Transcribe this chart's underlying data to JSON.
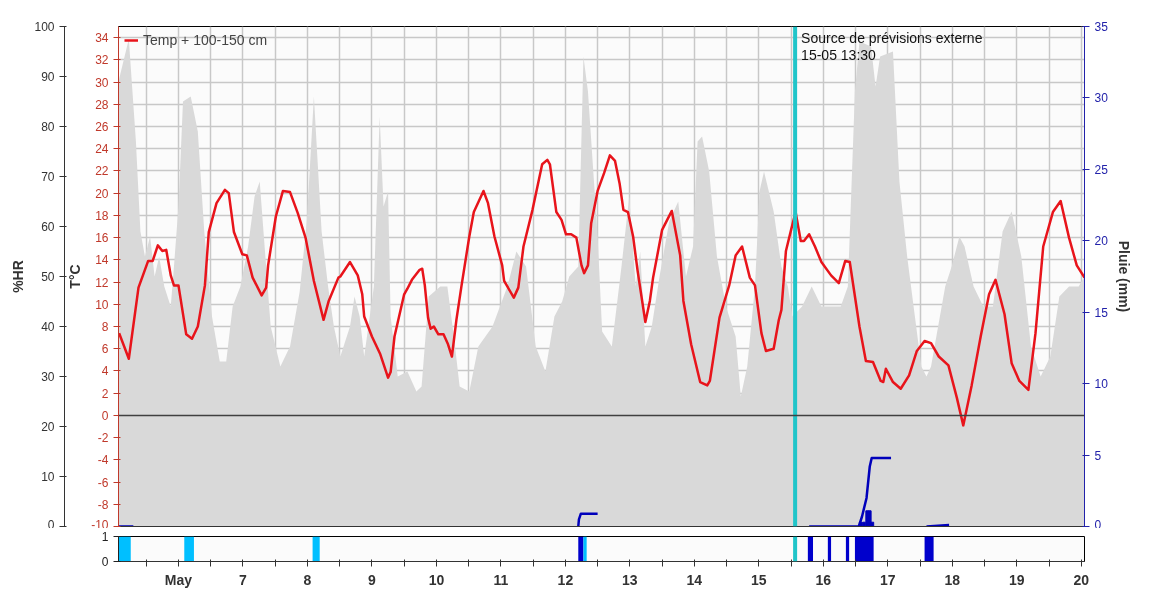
{
  "chart_data": [
    {
      "type": "line",
      "ylabel": "T°C",
      "y2label": "%HR",
      "y3label": "Pluie (mm)",
      "xlim": [
        5.07,
        20.05
      ],
      "xticks": [
        {
          "value": 5.5,
          "label": null
        },
        {
          "value": 6,
          "label": null
        },
        {
          "value": 6.5,
          "label": null
        },
        {
          "value": 7,
          "label": null
        },
        {
          "value": 7.5,
          "label": null
        },
        {
          "value": 8,
          "label": null
        },
        {
          "value": 8.5,
          "label": null
        },
        {
          "value": 9,
          "label": null
        },
        {
          "value": 9.5,
          "label": null
        },
        {
          "value": 10,
          "label": null
        },
        {
          "value": 10.5,
          "label": null
        },
        {
          "value": 11,
          "label": null
        },
        {
          "value": 11.5,
          "label": null
        },
        {
          "value": 12,
          "label": null
        },
        {
          "value": 12.5,
          "label": null
        },
        {
          "value": 13,
          "label": null
        },
        {
          "value": 13.5,
          "label": null
        },
        {
          "value": 14,
          "label": null
        },
        {
          "value": 14.5,
          "label": null
        },
        {
          "value": 15,
          "label": null
        },
        {
          "value": 15.5,
          "label": null
        },
        {
          "value": 16,
          "label": null
        },
        {
          "value": 16.5,
          "label": null
        },
        {
          "value": 17,
          "label": null
        },
        {
          "value": 17.5,
          "label": null
        },
        {
          "value": 18,
          "label": null
        },
        {
          "value": 18.5,
          "label": null
        },
        {
          "value": 19,
          "label": null
        },
        {
          "value": 19.5,
          "label": null
        },
        {
          "value": 20,
          "label": null
        }
      ],
      "ylim": [
        -10,
        35
      ],
      "yticks": [
        -10,
        -8,
        -6,
        -4,
        -2,
        0,
        2,
        4,
        6,
        8,
        10,
        12,
        14,
        16,
        18,
        20,
        22,
        24,
        26,
        28,
        30,
        32,
        34
      ],
      "y2lim": [
        0,
        100
      ],
      "y2ticks": [
        0,
        10,
        20,
        30,
        40,
        50,
        60,
        70,
        80,
        90,
        100
      ],
      "y3lim": [
        0,
        35
      ],
      "y3ticks": [
        0,
        5,
        10,
        15,
        20,
        25,
        30,
        35
      ],
      "grid": true,
      "legend": "top left",
      "tick_labels": "y",
      "annotations": [
        "Source de prévisions externe\n15-05 13:30"
      ],
      "ref_lines": [
        {
          "axis": "x",
          "value": 15.5625,
          "color": "#20c5c9"
        },
        {
          "axis": "y",
          "value": 0,
          "color": "#404040"
        }
      ],
      "series": [
        {
          "type": "area",
          "axis": "y2",
          "color": "#d9d9d9",
          "x": [
            5.07,
            5.23,
            5.34,
            5.41,
            5.48,
            5.56,
            5.63,
            5.7,
            5.78,
            5.88,
            5.93,
            6.0,
            6.07,
            6.19,
            6.3,
            6.4,
            6.52,
            6.64,
            6.74,
            6.84,
            6.96,
            7.08,
            7.18,
            7.26,
            7.33,
            7.43,
            7.58,
            7.73,
            7.88,
            7.99,
            8.1,
            8.22,
            8.32,
            8.41,
            8.51,
            8.66,
            8.73,
            8.81,
            8.88,
            9.03,
            9.12,
            9.18,
            9.25,
            9.29,
            9.4,
            9.55,
            9.69,
            9.77,
            9.88,
            10.06,
            10.17,
            10.28,
            10.36,
            10.51,
            10.65,
            10.87,
            11.1,
            11.24,
            11.39,
            11.54,
            11.69,
            11.83,
            11.95,
            12.06,
            12.2,
            12.28,
            12.35,
            12.5,
            12.57,
            12.72,
            12.87,
            12.99,
            13.09,
            13.16,
            13.24,
            13.34,
            13.46,
            13.61,
            13.75,
            13.87,
            13.98,
            14.05,
            14.12,
            14.23,
            14.35,
            14.49,
            14.64,
            14.72,
            14.82,
            14.94,
            15.01,
            15.08,
            15.23,
            15.35,
            15.45,
            15.52,
            15.67,
            15.82,
            15.97,
            16.12,
            16.27,
            16.38,
            16.49,
            16.56,
            16.74,
            16.81,
            16.88,
            17.08,
            17.18,
            17.3,
            17.52,
            17.6,
            17.67,
            17.89,
            17.99,
            18.11,
            18.19,
            18.33,
            18.48,
            18.63,
            18.78,
            18.92,
            19.07,
            19.22,
            19.37,
            19.52,
            19.66,
            19.81,
            19.96,
            20.05
          ],
          "values": [
            89,
            97.5,
            77,
            59,
            54,
            58,
            50,
            54,
            48,
            44,
            52,
            64,
            85,
            86,
            79,
            59,
            42,
            33,
            33,
            44,
            48,
            56,
            66,
            69,
            57,
            40,
            32,
            36,
            47,
            61,
            86,
            59,
            48,
            40,
            34,
            40,
            46,
            42,
            34,
            48,
            82,
            64,
            67,
            42,
            30,
            31,
            27,
            28,
            46,
            48,
            48,
            37,
            28,
            27,
            36,
            40,
            48,
            55,
            52,
            36,
            31,
            42,
            45,
            50,
            52,
            94,
            87,
            58,
            39,
            36,
            52,
            66,
            48,
            55,
            36,
            40,
            50,
            61,
            65,
            50,
            56,
            77,
            78,
            71,
            54,
            44,
            38,
            26,
            32,
            48,
            67,
            71,
            63,
            52,
            48,
            42,
            44,
            48,
            44,
            44,
            44,
            48,
            87,
            97,
            96,
            88,
            94,
            95,
            69,
            54,
            32,
            30,
            32,
            48,
            52,
            58,
            56,
            48,
            44,
            44,
            59,
            63,
            54,
            36,
            30,
            34,
            46,
            48,
            48,
            50
          ]
        },
        {
          "name": "Temp + 100-150 cm",
          "color": "#e8141b",
          "x": [
            5.08,
            5.23,
            5.38,
            5.53,
            5.6,
            5.68,
            5.75,
            5.81,
            5.88,
            5.93,
            6.0,
            6.12,
            6.21,
            6.3,
            6.41,
            6.47,
            6.59,
            6.72,
            6.78,
            6.86,
            6.99,
            7.06,
            7.15,
            7.29,
            7.36,
            7.39,
            7.51,
            7.62,
            7.73,
            7.85,
            7.97,
            8.07,
            8.1,
            8.25,
            8.33,
            8.48,
            8.51,
            8.66,
            8.78,
            8.85,
            8.88,
            9.0,
            9.13,
            9.25,
            9.29,
            9.35,
            9.5,
            9.55,
            9.62,
            9.74,
            9.78,
            9.82,
            9.87,
            9.91,
            9.96,
            10.03,
            10.11,
            10.18,
            10.24,
            10.31,
            10.39,
            10.51,
            10.58,
            10.73,
            10.8,
            10.9,
            11.02,
            11.05,
            11.2,
            11.27,
            11.35,
            11.49,
            11.64,
            11.72,
            11.76,
            11.86,
            11.94,
            12.01,
            12.09,
            12.17,
            12.25,
            12.29,
            12.35,
            12.4,
            12.5,
            12.6,
            12.69,
            12.77,
            12.84,
            12.9,
            12.97,
            13.05,
            13.12,
            13.24,
            13.31,
            13.36,
            13.5,
            13.65,
            13.78,
            13.83,
            13.95,
            14.09,
            14.2,
            14.24,
            14.39,
            14.54,
            14.64,
            14.74,
            14.86,
            14.94,
            15.04,
            15.11,
            15.23,
            15.31,
            15.35,
            15.42,
            15.5,
            15.57,
            15.65,
            15.7,
            15.78,
            15.87,
            15.97,
            16.12,
            16.24,
            16.34,
            16.41,
            16.56,
            16.66,
            16.77,
            16.89,
            16.93,
            16.97,
            17.08,
            17.2,
            17.33,
            17.45,
            17.57,
            17.67,
            17.79,
            17.94,
            18.07,
            18.17,
            18.3,
            18.44,
            18.57,
            18.67,
            18.81,
            18.92,
            19.04,
            19.18,
            19.29,
            19.41,
            19.56,
            19.68,
            19.81,
            19.93,
            20.05
          ],
          "values": [
            7.4,
            5.1,
            11.5,
            13.9,
            13.9,
            15.3,
            14.8,
            14.9,
            12.6,
            11.7,
            11.7,
            7.3,
            6.9,
            8.0,
            11.7,
            16.5,
            19.1,
            20.3,
            20.0,
            16.5,
            14.5,
            14.4,
            12.4,
            10.8,
            11.5,
            13.5,
            17.9,
            20.2,
            20.1,
            18.2,
            16.0,
            13.0,
            12.1,
            8.6,
            10.3,
            12.4,
            12.5,
            13.8,
            12.6,
            10.9,
            8.9,
            7.1,
            5.5,
            3.4,
            3.9,
            7.1,
            10.9,
            11.4,
            12.2,
            13.1,
            13.2,
            11.7,
            8.8,
            7.8,
            8.0,
            7.3,
            7.3,
            6.4,
            5.3,
            8.6,
            11.7,
            16.1,
            18.3,
            20.2,
            19.1,
            16.1,
            13.5,
            12.1,
            10.6,
            11.5,
            15.2,
            18.5,
            22.6,
            23.0,
            22.6,
            18.3,
            17.6,
            16.3,
            16.3,
            16.0,
            13.5,
            12.8,
            13.5,
            17.3,
            20.2,
            21.8,
            23.4,
            22.9,
            20.9,
            18.5,
            18.3,
            16.1,
            13.0,
            8.4,
            10.3,
            12.4,
            16.7,
            18.4,
            14.4,
            10.3,
            6.4,
            3.0,
            2.7,
            3.1,
            8.8,
            11.7,
            14.4,
            15.2,
            12.4,
            11.7,
            7.4,
            5.8,
            6.0,
            8.6,
            9.5,
            14.8,
            16.7,
            18.3,
            15.7,
            15.7,
            16.3,
            15.2,
            13.8,
            12.6,
            11.9,
            13.9,
            13.8,
            8.0,
            4.9,
            4.8,
            3.1,
            3.0,
            4.2,
            3.0,
            2.4,
            3.6,
            5.8,
            6.7,
            6.5,
            5.3,
            4.5,
            1.6,
            -0.9,
            2.7,
            7.1,
            10.9,
            12.2,
            9.1,
            4.7,
            3.1,
            2.3,
            7.4,
            15.2,
            18.3,
            19.3,
            16.0,
            13.5,
            12.4
          ]
        },
        {
          "type": "line",
          "axis": "y3",
          "color": "#0000bb",
          "x": [
            5.07,
            5.3,
            5.31,
            12.2,
            12.21,
            12.24,
            12.5,
            12.51,
            15.78,
            16.55,
            16.6,
            16.67,
            16.72,
            16.75,
            17.05,
            17.06,
            17.6,
            17.95
          ],
          "values": [
            0,
            0,
            null,
            0,
            0.5,
            0.9,
            0.9,
            null,
            0,
            0,
            0.7,
            2,
            4.2,
            4.8,
            4.8,
            null,
            0,
            0.1
          ]
        },
        {
          "type": "bar",
          "axis": "y3",
          "color": "#0000bb",
          "x": [
            16.58,
            16.63,
            16.68,
            16.72,
            16.76
          ],
          "values": [
            0.3,
            0.3,
            1.1,
            1.1,
            0.3
          ]
        }
      ]
    },
    {
      "type": "area",
      "xlim": [
        5.07,
        20.05
      ],
      "xticks": [
        {
          "value": 5.5,
          "label": null
        },
        {
          "value": 6,
          "label": "May"
        },
        {
          "value": 6.5,
          "label": null
        },
        {
          "value": 7,
          "label": "7"
        },
        {
          "value": 7.5,
          "label": null
        },
        {
          "value": 8,
          "label": "8"
        },
        {
          "value": 8.5,
          "label": null
        },
        {
          "value": 9,
          "label": "9"
        },
        {
          "value": 9.5,
          "label": null
        },
        {
          "value": 10,
          "label": "10"
        },
        {
          "value": 10.5,
          "label": null
        },
        {
          "value": 11,
          "label": "11"
        },
        {
          "value": 11.5,
          "label": null
        },
        {
          "value": 12,
          "label": "12"
        },
        {
          "value": 12.5,
          "label": null
        },
        {
          "value": 13,
          "label": "13"
        },
        {
          "value": 13.5,
          "label": null
        },
        {
          "value": 14,
          "label": "14"
        },
        {
          "value": 14.5,
          "label": null
        },
        {
          "value": 15,
          "label": "15"
        },
        {
          "value": 15.5,
          "label": null
        },
        {
          "value": 16,
          "label": "16"
        },
        {
          "value": 16.5,
          "label": null
        },
        {
          "value": 17,
          "label": "17"
        },
        {
          "value": 17.5,
          "label": null
        },
        {
          "value": 18,
          "label": "18"
        },
        {
          "value": 18.5,
          "label": null
        },
        {
          "value": 19,
          "label": "19"
        },
        {
          "value": 19.5,
          "label": null
        },
        {
          "value": 20,
          "label": "20"
        }
      ],
      "ylim": [
        0,
        1
      ],
      "yticks": [
        0,
        1
      ],
      "ref_lines": [
        {
          "axis": "x",
          "value": 15.5625,
          "color": "#20c5c9"
        }
      ],
      "series": [
        {
          "color": "#00bfff",
          "x": [
            5.07,
            5.26
          ],
          "values": [
            1,
            1
          ]
        },
        {
          "color": "#00bfff",
          "x": [
            6.09,
            6.24
          ],
          "values": [
            1,
            1
          ]
        },
        {
          "color": "#00bfff",
          "x": [
            8.08,
            8.19
          ],
          "values": [
            1,
            1
          ]
        },
        {
          "color": "#0000cc",
          "x": [
            12.2,
            12.28
          ],
          "values": [
            1,
            1
          ]
        },
        {
          "color": "#00bfff",
          "x": [
            12.28,
            12.33
          ],
          "values": [
            1,
            1
          ]
        },
        {
          "color": "#0000cc",
          "x": [
            15.76,
            15.84
          ],
          "values": [
            1,
            1
          ]
        },
        {
          "color": "#0000cc",
          "x": [
            16.07,
            16.12
          ],
          "values": [
            1,
            1
          ]
        },
        {
          "color": "#0000cc",
          "x": [
            16.35,
            16.4
          ],
          "values": [
            1,
            1
          ]
        },
        {
          "color": "#0000cc",
          "x": [
            16.49,
            16.78
          ],
          "values": [
            1,
            1
          ]
        },
        {
          "color": "#0000cc",
          "x": [
            17.57,
            17.71
          ],
          "values": [
            1,
            1
          ]
        }
      ]
    }
  ]
}
